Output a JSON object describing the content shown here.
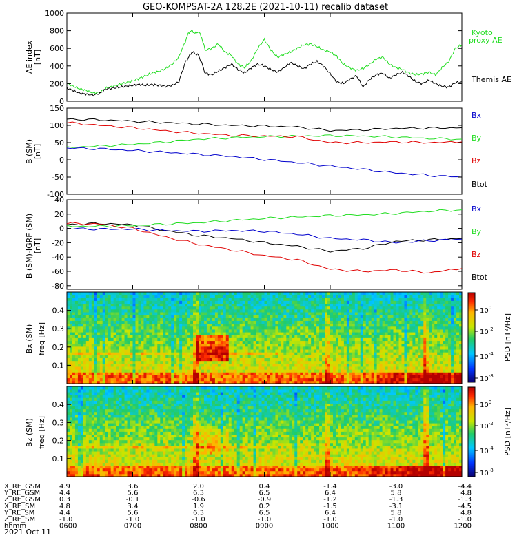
{
  "title": "GEO-KOMPSAT-2A 128.2E (2021-10-11) recalib dataset",
  "colors": {
    "black": "#000000",
    "green": "#22dd22",
    "red": "#e00000",
    "blue": "#0000cc"
  },
  "chart_data": [
    {
      "type": "line",
      "panel": "ae",
      "ylabel_main": "AE index",
      "ylabel_unit": "[nT]",
      "ylim": [
        0,
        1000
      ],
      "yticks": [
        0,
        200,
        400,
        600,
        800,
        1000
      ],
      "x_hours": [
        6.0,
        6.1,
        6.2,
        6.3,
        6.4,
        6.5,
        6.6,
        6.7,
        6.8,
        6.9,
        7.0,
        7.1,
        7.2,
        7.3,
        7.4,
        7.5,
        7.6,
        7.7,
        7.8,
        7.85,
        7.9,
        7.95,
        8.0,
        8.05,
        8.1,
        8.2,
        8.3,
        8.4,
        8.5,
        8.6,
        8.7,
        8.8,
        8.9,
        9.0,
        9.1,
        9.2,
        9.3,
        9.4,
        9.5,
        9.6,
        9.7,
        9.8,
        9.9,
        10.0,
        10.1,
        10.2,
        10.3,
        10.4,
        10.5,
        10.6,
        10.7,
        10.8,
        10.9,
        11.0,
        11.1,
        11.2,
        11.3,
        11.4,
        11.5,
        11.6,
        11.7,
        11.8,
        11.9,
        12.0
      ],
      "series": [
        {
          "name": "Kyoto proxy AE",
          "color": "#22dd22",
          "values": [
            200,
            170,
            140,
            120,
            95,
            100,
            150,
            170,
            190,
            210,
            230,
            260,
            290,
            320,
            340,
            370,
            420,
            500,
            680,
            780,
            800,
            770,
            790,
            720,
            580,
            600,
            650,
            560,
            520,
            420,
            380,
            460,
            600,
            700,
            580,
            500,
            530,
            560,
            600,
            640,
            650,
            620,
            580,
            560,
            510,
            420,
            380,
            350,
            370,
            420,
            480,
            500,
            420,
            380,
            360,
            320,
            300,
            310,
            330,
            300,
            380,
            450,
            600,
            640
          ]
        },
        {
          "name": "Themis AE",
          "color": "#000000",
          "values": [
            150,
            120,
            90,
            80,
            70,
            90,
            140,
            150,
            160,
            170,
            180,
            190,
            180,
            190,
            180,
            170,
            180,
            220,
            440,
            500,
            560,
            540,
            520,
            430,
            320,
            300,
            340,
            380,
            420,
            360,
            320,
            380,
            420,
            400,
            360,
            330,
            380,
            440,
            400,
            370,
            420,
            450,
            400,
            310,
            220,
            200,
            250,
            290,
            160,
            250,
            300,
            320,
            260,
            300,
            330,
            280,
            220,
            200,
            240,
            200,
            170,
            160,
            210,
            220
          ]
        }
      ],
      "legend": [
        "Kyoto",
        "proxy AE",
        "Themis AE"
      ]
    },
    {
      "type": "line",
      "panel": "b_sm",
      "ylabel_main": "B (SM)",
      "ylabel_unit": "[nT]",
      "ylim": [
        -100,
        150
      ],
      "yticks": [
        -100,
        -50,
        0,
        50,
        100,
        150
      ],
      "x_hours": [
        6.0,
        6.5,
        7.0,
        7.5,
        8.0,
        8.5,
        9.0,
        9.5,
        10.0,
        10.5,
        11.0,
        11.5,
        12.0
      ],
      "series": [
        {
          "name": "Btot",
          "color": "#000000",
          "values": [
            118,
            116,
            112,
            108,
            104,
            100,
            98,
            95,
            85,
            87,
            91,
            92,
            93
          ]
        },
        {
          "name": "By",
          "color": "#22dd22",
          "values": [
            36,
            40,
            45,
            52,
            60,
            64,
            67,
            69,
            70,
            69,
            66,
            62,
            60
          ]
        },
        {
          "name": "Bz",
          "color": "#e00000",
          "values": [
            108,
            100,
            93,
            84,
            77,
            71,
            69,
            67,
            50,
            50,
            52,
            50,
            52
          ]
        },
        {
          "name": "Bx",
          "color": "#0000cc",
          "values": [
            34,
            32,
            27,
            22,
            16,
            10,
            1,
            -8,
            -18,
            -28,
            -38,
            -45,
            -50
          ]
        }
      ],
      "legend": [
        "Bx",
        "By",
        "Bz",
        "Btot"
      ]
    },
    {
      "type": "line",
      "panel": "b_minus_igrf",
      "ylabel_main": "B (SM)-IGRF (SM)",
      "ylabel_unit": "[nT]",
      "ylim": [
        -85,
        40
      ],
      "yticks": [
        -80,
        -60,
        -40,
        -20,
        0,
        20,
        40
      ],
      "x_hours": [
        6.0,
        6.5,
        7.0,
        7.5,
        8.0,
        8.5,
        9.0,
        9.5,
        10.0,
        10.5,
        11.0,
        11.5,
        12.0
      ],
      "series": [
        {
          "name": "Btot",
          "color": "#000000",
          "values": [
            5,
            7,
            5,
            -3,
            -10,
            -14,
            -20,
            -25,
            -32,
            -28,
            -18,
            -16,
            -14
          ]
        },
        {
          "name": "By",
          "color": "#22dd22",
          "values": [
            3,
            3,
            4,
            6,
            8,
            11,
            14,
            16,
            18,
            19,
            21,
            24,
            26
          ]
        },
        {
          "name": "Bz",
          "color": "#e00000",
          "values": [
            7,
            6,
            0,
            -12,
            -22,
            -30,
            -38,
            -44,
            -57,
            -60,
            -58,
            -62,
            -56
          ]
        },
        {
          "name": "Bx",
          "color": "#0000cc",
          "values": [
            0,
            -1,
            -1,
            -3,
            -4,
            -3,
            -4,
            -8,
            -14,
            -16,
            -20,
            -17,
            -15
          ]
        }
      ],
      "legend": [
        "Bx",
        "By",
        "Bz",
        "Btot"
      ]
    },
    {
      "type": "heatmap",
      "panel": "spec_bx",
      "ylabel_main": "Bx (SM)",
      "ylabel_unit": "freq [Hz]",
      "ylim": [
        0,
        0.5
      ],
      "yticks": [
        0.1,
        0.2,
        0.3,
        0.4
      ],
      "colorbar_label": "PSD [nT²/Hz]",
      "colorbar_ticks": [
        "10",
        "10",
        "10",
        "10"
      ],
      "colorbar_exponents": [
        "0",
        "-2",
        "-4",
        "-8"
      ]
    },
    {
      "type": "heatmap",
      "panel": "spec_bz",
      "ylabel_main": "Bz (SM)",
      "ylabel_unit": "freq [Hz]",
      "ylim": [
        0,
        0.5
      ],
      "yticks": [
        0.1,
        0.2,
        0.3,
        0.4
      ],
      "colorbar_label": "PSD [nT²/Hz]",
      "colorbar_ticks": [
        "10",
        "10",
        "10",
        "10"
      ],
      "colorbar_exponents": [
        "0",
        "-2",
        "-4",
        "-8"
      ]
    }
  ],
  "ephemeris": {
    "rows": [
      {
        "label": "X_RE_GSM",
        "values": [
          "4.9",
          "3.6",
          "2.0",
          "0.4",
          "-1.4",
          "-3.0",
          "-4.4"
        ]
      },
      {
        "label": "Y_RE_GSM",
        "values": [
          "4.4",
          "5.6",
          "6.3",
          "6.5",
          "6.4",
          "5.8",
          "4.8"
        ]
      },
      {
        "label": "Z_RE_GSM",
        "values": [
          "0.3",
          "-0.1",
          "-0.6",
          "-0.9",
          "-1.2",
          "-1.3",
          "-1.3"
        ]
      },
      {
        "label": "X_RE_SM",
        "values": [
          "4.8",
          "3.4",
          "1.9",
          "0.2",
          "-1.5",
          "-3.1",
          "-4.5"
        ]
      },
      {
        "label": "Y_RE_SM",
        "values": [
          "4.4",
          "5.6",
          "6.3",
          "6.5",
          "6.4",
          "5.8",
          "4.8"
        ]
      },
      {
        "label": "Z_RE_SM",
        "values": [
          "-1.0",
          "-1.0",
          "-1.0",
          "-1.0",
          "-1.0",
          "-1.0",
          "-1.0"
        ]
      },
      {
        "label": "hhmm",
        "values": [
          "0600",
          "0700",
          "0800",
          "0900",
          "1000",
          "1100",
          "1200"
        ]
      }
    ],
    "date": "2021 Oct 11"
  }
}
